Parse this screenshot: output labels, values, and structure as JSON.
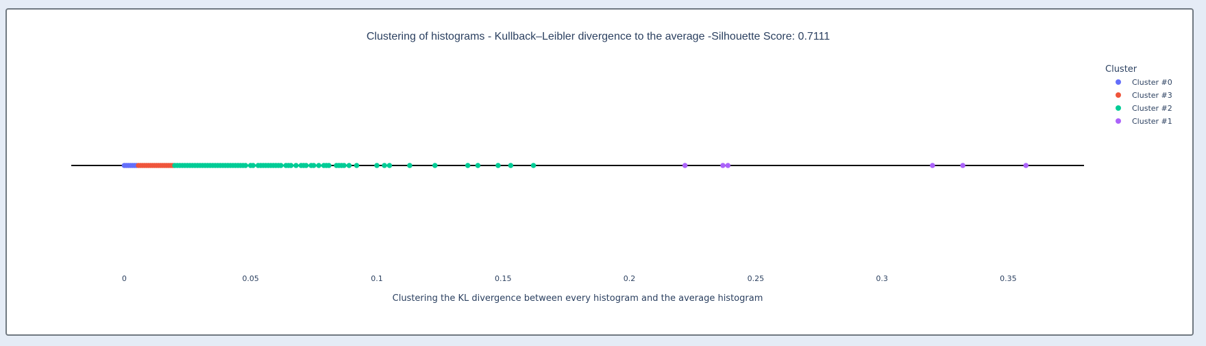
{
  "chart_data": {
    "type": "scatter",
    "title": "Clustering of histograms - Kullback–Leibler divergence to the average -Silhouette Score: 0.7111",
    "xlabel": "Clustering the KL divergence between every histogram and the average histogram",
    "ylabel": "",
    "xlim": [
      -0.021,
      0.38
    ],
    "xticks": [
      0,
      0.05,
      0.1,
      0.15,
      0.2,
      0.25,
      0.3,
      0.35
    ],
    "xtick_labels": [
      "0",
      "0.05",
      "0.1",
      "0.15",
      "0.2",
      "0.25",
      "0.3",
      "0.35"
    ],
    "legend_title": "Cluster",
    "legend_position": "top-right",
    "series": [
      {
        "name": "Cluster #0",
        "color": "#636efa",
        "x": [
          0.0,
          0.0008,
          0.0016,
          0.0024,
          0.0032,
          0.004,
          0.0048
        ]
      },
      {
        "name": "Cluster #3",
        "color": "#ef553b",
        "x": [
          0.0056,
          0.0064,
          0.0072,
          0.008,
          0.0088,
          0.0096,
          0.0104,
          0.0112,
          0.012,
          0.0128,
          0.0136,
          0.0144,
          0.0152,
          0.016,
          0.0168,
          0.0176,
          0.0184,
          0.0192
        ]
      },
      {
        "name": "Cluster #2",
        "color": "#00cc96",
        "x": [
          0.02,
          0.021,
          0.022,
          0.023,
          0.024,
          0.025,
          0.026,
          0.027,
          0.028,
          0.029,
          0.03,
          0.031,
          0.032,
          0.033,
          0.034,
          0.035,
          0.036,
          0.037,
          0.038,
          0.039,
          0.04,
          0.041,
          0.042,
          0.043,
          0.044,
          0.045,
          0.046,
          0.047,
          0.048,
          0.05,
          0.051,
          0.053,
          0.054,
          0.055,
          0.056,
          0.057,
          0.058,
          0.059,
          0.06,
          0.061,
          0.062,
          0.064,
          0.065,
          0.066,
          0.068,
          0.07,
          0.071,
          0.072,
          0.074,
          0.075,
          0.077,
          0.079,
          0.08,
          0.081,
          0.084,
          0.085,
          0.086,
          0.087,
          0.089,
          0.092,
          0.1,
          0.103,
          0.105,
          0.113,
          0.123,
          0.136,
          0.14,
          0.148,
          0.153,
          0.162
        ]
      },
      {
        "name": "Cluster #1",
        "color": "#ab63fa",
        "x": [
          0.222,
          0.237,
          0.239,
          0.32,
          0.332,
          0.357
        ]
      }
    ]
  }
}
